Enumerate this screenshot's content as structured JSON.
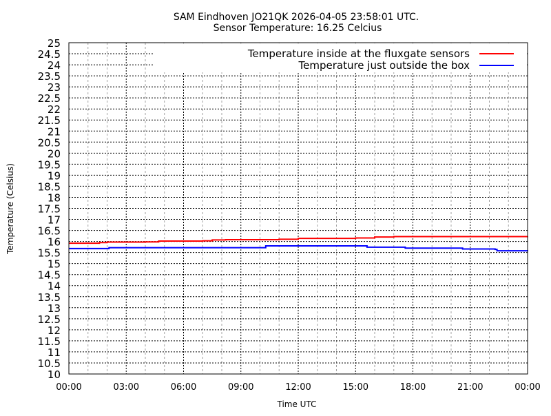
{
  "chart_data": {
    "type": "line",
    "title": "SAM Eindhoven JO21QK 2026-04-05 23:58:01 UTC.",
    "subtitle": "Sensor Temperature: 16.25 Celcius",
    "xlabel": "Time UTC",
    "ylabel": "Temperature (Celsius)",
    "xlim": [
      0,
      24
    ],
    "ylim": [
      10,
      25
    ],
    "x_unit": "hours UTC",
    "xticks": [
      "00:00",
      "03:00",
      "06:00",
      "09:00",
      "12:00",
      "15:00",
      "18:00",
      "21:00",
      "00:00"
    ],
    "yticks": [
      "10",
      "10.5",
      "11",
      "11.5",
      "12",
      "12.5",
      "13",
      "13.5",
      "14",
      "14.5",
      "15",
      "15.5",
      "16",
      "16.5",
      "17",
      "17.5",
      "18",
      "18.5",
      "19",
      "19.5",
      "20",
      "20.5",
      "21",
      "21.5",
      "22",
      "22.5",
      "23",
      "23.5",
      "24",
      "24.5",
      "25"
    ],
    "grid": true,
    "legend_placement": "top-right",
    "series": [
      {
        "name": "Temperature inside at the fluxgate sensors",
        "color": "#ff0000",
        "points": [
          [
            0,
            15.92
          ],
          [
            1.5,
            15.92
          ],
          [
            1.6,
            15.95
          ],
          [
            2.0,
            15.97
          ],
          [
            4.0,
            15.98
          ],
          [
            4.7,
            16.02
          ],
          [
            7.0,
            16.03
          ],
          [
            7.5,
            16.07
          ],
          [
            8.2,
            16.08
          ],
          [
            11.0,
            16.1
          ],
          [
            12.0,
            16.14
          ],
          [
            15.0,
            16.16
          ],
          [
            16.0,
            16.2
          ],
          [
            17.0,
            16.22
          ],
          [
            24,
            16.23
          ]
        ]
      },
      {
        "name": "Temperature just outside the box",
        "color": "#0000ff",
        "points": [
          [
            0,
            15.68
          ],
          [
            1.5,
            15.68
          ],
          [
            2.1,
            15.72
          ],
          [
            10.1,
            15.72
          ],
          [
            10.3,
            15.8
          ],
          [
            15.5,
            15.8
          ],
          [
            15.6,
            15.74
          ],
          [
            17.5,
            15.74
          ],
          [
            17.6,
            15.7
          ],
          [
            20.5,
            15.7
          ],
          [
            20.6,
            15.66
          ],
          [
            22.3,
            15.64
          ],
          [
            22.4,
            15.58
          ],
          [
            24,
            15.55
          ]
        ]
      }
    ]
  }
}
